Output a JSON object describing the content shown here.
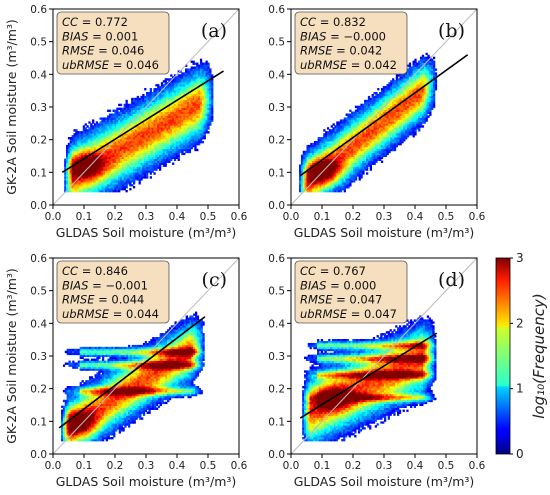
{
  "chart_data": [
    {
      "type": "heatmap",
      "panel_label": "(a)",
      "xlabel": "GLDAS Soil moisture (m³/m³)",
      "ylabel": "GK-2A Soil moisture (m³/m³)",
      "xlim": [
        0,
        0.6
      ],
      "ylim": [
        0,
        0.6
      ],
      "xticks": [
        "0.0",
        "0.1",
        "0.2",
        "0.3",
        "0.4",
        "0.5",
        "0.6"
      ],
      "yticks": [
        "0.0",
        "0.1",
        "0.2",
        "0.3",
        "0.4",
        "0.5",
        "0.6"
      ],
      "stats": {
        "CC": "0.772",
        "BIAS": "0.001",
        "RMSE": "0.046",
        "ubRMSE": "0.046"
      },
      "fit_line": {
        "x": [
          0.03,
          0.55
        ],
        "y": [
          0.1,
          0.41
        ]
      },
      "one_to_one_line": true
    },
    {
      "type": "heatmap",
      "panel_label": "(b)",
      "xlabel": "GLDAS Soil moisture (m³/m³)",
      "ylabel": "",
      "xlim": [
        0,
        0.6
      ],
      "ylim": [
        0,
        0.6
      ],
      "xticks": [
        "0.0",
        "0.1",
        "0.2",
        "0.3",
        "0.4",
        "0.5",
        "0.6"
      ],
      "yticks": [
        "0.0",
        "0.1",
        "0.2",
        "0.3",
        "0.4",
        "0.5",
        "0.6"
      ],
      "stats": {
        "CC": "0.832",
        "BIAS": "−0.000",
        "RMSE": "0.042",
        "ubRMSE": "0.042"
      },
      "fit_line": {
        "x": [
          0.03,
          0.57
        ],
        "y": [
          0.09,
          0.46
        ]
      },
      "one_to_one_line": true
    },
    {
      "type": "heatmap",
      "panel_label": "(c)",
      "xlabel": "GLDAS Soil moisture (m³/m³)",
      "ylabel": "GK-2A Soil moisture (m³/m³)",
      "xlim": [
        0,
        0.6
      ],
      "ylim": [
        0,
        0.6
      ],
      "xticks": [
        "0.0",
        "0.1",
        "0.2",
        "0.3",
        "0.4",
        "0.5",
        "0.6"
      ],
      "yticks": [
        "0.0",
        "0.1",
        "0.2",
        "0.3",
        "0.4",
        "0.5",
        "0.6"
      ],
      "stats": {
        "CC": "0.846",
        "BIAS": "−0.001",
        "RMSE": "0.044",
        "ubRMSE": "0.044"
      },
      "fit_line": {
        "x": [
          0.02,
          0.49
        ],
        "y": [
          0.08,
          0.42
        ]
      },
      "one_to_one_line": true
    },
    {
      "type": "heatmap",
      "panel_label": "(d)",
      "xlabel": "GLDAS Soil moisture (m³/m³)",
      "ylabel": "",
      "xlim": [
        0,
        0.6
      ],
      "ylim": [
        0,
        0.6
      ],
      "xticks": [
        "0.0",
        "0.1",
        "0.2",
        "0.3",
        "0.4",
        "0.5",
        "0.6"
      ],
      "yticks": [
        "0.0",
        "0.1",
        "0.2",
        "0.3",
        "0.4",
        "0.5",
        "0.6"
      ],
      "stats": {
        "CC": "0.767",
        "BIAS": "0.000",
        "RMSE": "0.047",
        "ubRMSE": "0.047"
      },
      "fit_line": {
        "x": [
          0.03,
          0.47
        ],
        "y": [
          0.11,
          0.37
        ]
      },
      "one_to_one_line": true
    }
  ],
  "colorbar": {
    "title": "log₁₀(Frequency)",
    "ticks": [
      "0",
      "1",
      "2",
      "3"
    ],
    "range": [
      0,
      3
    ],
    "colormap": "jet"
  }
}
